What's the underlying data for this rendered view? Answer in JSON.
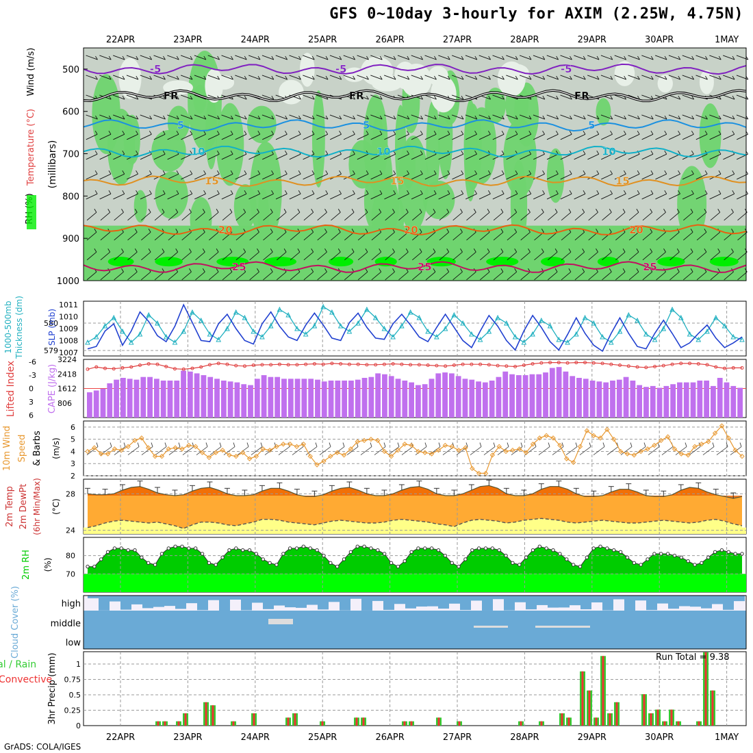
{
  "title": "GFS 0~10day 3-hourly for AXIM (2.25W, 4.75N)",
  "credit": "GrADS: COLA/IGES",
  "dates": [
    "22APR",
    "23APR",
    "24APR",
    "25APR",
    "26APR",
    "27APR",
    "28APR",
    "29APR",
    "30APR",
    "1MAY"
  ],
  "colors": {
    "rh_green": "#6fd46f",
    "rh_dark": "#00ee00",
    "rh_gray": "#c8d2c8",
    "cape": "#c070ee",
    "li": "#e04040",
    "slp": "#2040d0",
    "thick": "#20b0c0",
    "wind10": "#e89830",
    "temp_orange": "#ffaa33",
    "temp_dark": "#ee6600",
    "dew_yellow": "#ffff88",
    "rh2m": "#00cc00",
    "rh2m_bright": "#00ff00",
    "cloud": "#6aaad6",
    "cloud_bg": "#f4f0fa",
    "precip_total": "#33cc33",
    "precip_conv": "#ee3333"
  },
  "chart_data": [
    {
      "panel": "upper-air",
      "type": "heatmap",
      "ylabel": "(millibars)",
      "side_labels": [
        "RH (%)",
        "Temperature (°C)",
        "Wind (m/s)"
      ],
      "yticks": [
        500,
        600,
        700,
        800,
        900,
        1000
      ],
      "ylim": [
        1000,
        450
      ],
      "isotherms": [
        {
          "label": "-5",
          "level": 500
        },
        {
          "label": "FR",
          "level": 563
        },
        {
          "label": "5",
          "level": 633
        },
        {
          "label": "10",
          "level": 695
        },
        {
          "label": "15",
          "level": 765
        },
        {
          "label": "20",
          "level": 880
        },
        {
          "label": "25",
          "level": 968
        }
      ]
    },
    {
      "panel": "slp-thickness",
      "type": "line",
      "ylabel_left": "1000-500mb Thickness (dm)",
      "ylabel_right": "SLP (mb)",
      "left_ticks": [
        579,
        580
      ],
      "right_ticks": [
        1007,
        1008,
        1009,
        1010,
        1011
      ],
      "slp": [
        1007.3,
        1007.5,
        1008.8,
        1009.4,
        1007.6,
        1008.8,
        1010.4,
        1009.6,
        1008.4,
        1007.9,
        1009.2,
        1011.0,
        1009.5,
        1008.0,
        1007.9,
        1009.4,
        1010.2,
        1009.0,
        1008.0,
        1007.7,
        1009.4,
        1010.4,
        1009.2,
        1008.3,
        1008.0,
        1009.3,
        1010.3,
        1009.3,
        1008.2,
        1008.0,
        1009.5,
        1010.3,
        1009.1,
        1008.2,
        1008.1,
        1009.4,
        1010.2,
        1009.3,
        1008.3,
        1007.9,
        1009.1,
        1010.2,
        1009.1,
        1008.0,
        1007.4,
        1008.8,
        1010.1,
        1009.2,
        1008.0,
        1007.2,
        1008.8,
        1010.1,
        1009.1,
        1007.9,
        1007.2,
        1008.5,
        1009.9,
        1008.6,
        1007.6,
        1007.1,
        1008.6,
        1009.9,
        1008.6,
        1007.5,
        1007.3,
        1008.6,
        1009.7,
        1008.6,
        1007.4,
        1007.8,
        1008.6,
        1009.3,
        1008.2,
        1007.4,
        1007.8,
        1008.3
      ],
      "thickness": [
        579.3,
        579.5,
        579.9,
        580.2,
        579.7,
        579.3,
        579.6,
        580.3,
        580.0,
        579.5,
        579.3,
        579.7,
        580.4,
        580.1,
        579.6,
        579.4,
        579.8,
        580.4,
        580.2,
        579.7,
        579.5,
        579.9,
        580.5,
        580.3,
        579.8,
        579.6,
        579.9,
        580.6,
        580.4,
        579.9,
        579.7,
        580.0,
        580.5,
        580.2,
        579.8,
        579.5,
        579.9,
        580.4,
        580.2,
        579.7,
        579.5,
        579.8,
        580.3,
        580.0,
        579.6,
        579.4,
        579.7,
        580.2,
        580.0,
        579.5,
        579.3,
        579.6,
        580.1,
        579.9,
        579.4,
        579.3,
        579.6,
        580.2,
        580.0,
        579.5,
        579.3,
        579.7,
        580.3,
        580.1,
        579.6,
        579.4,
        579.8,
        580.5,
        580.2,
        579.6,
        579.4,
        579.7,
        580.2,
        579.9,
        579.5,
        579.4
      ]
    },
    {
      "panel": "li-cape",
      "type": "bar",
      "ylabel_left": "Lifted Index",
      "ylabel_right": "CAPE (J/kg)",
      "li_ticks": [
        -6,
        -3,
        0,
        3,
        6
      ],
      "cape_ticks": [
        806,
        1612,
        2418,
        3224
      ],
      "cape": [
        1400,
        1500,
        1600,
        1900,
        2100,
        2200,
        2150,
        2100,
        2250,
        2250,
        2150,
        2050,
        2050,
        2050,
        2600,
        2550,
        2450,
        2350,
        2250,
        2150,
        2050,
        2000,
        1950,
        1850,
        1800,
        2150,
        2350,
        2250,
        2250,
        2150,
        2150,
        2150,
        2150,
        2150,
        2100,
        2000,
        2050,
        2050,
        2050,
        2050,
        2100,
        2200,
        2250,
        2450,
        2400,
        2300,
        2150,
        2050,
        1950,
        1800,
        1850,
        2150,
        2450,
        2500,
        2450,
        2300,
        2150,
        2100,
        2000,
        1950,
        2050,
        2250,
        2550,
        2400,
        2350,
        2350,
        2400,
        2400,
        2500,
        2750,
        2800,
        2550,
        2300,
        2200,
        2150,
        2050,
        2000,
        1950,
        2050,
        2100,
        2250,
        2050,
        1800,
        1700,
        1750,
        1650,
        1750,
        1850,
        1950,
        1950,
        1950,
        2050,
        2050,
        1750,
        2200,
        1950,
        1750,
        1650
      ],
      "li": [
        -4.3,
        -4.8,
        -4.5,
        -4.4,
        -4.6,
        -4.8,
        -5.2,
        -5.5,
        -5.4,
        -4.9,
        -4.4,
        -4.3,
        -4.5,
        -4.8,
        -5.3,
        -5.6,
        -5.4,
        -5.1,
        -5.0,
        -5.2,
        -5.3,
        -5.3,
        -5.4,
        -5.3,
        -5.3,
        -5.4,
        -5.5,
        -5.4,
        -5.6,
        -5.5,
        -5.4,
        -5.4,
        -5.3,
        -5.3,
        -5.4,
        -5.5,
        -5.4,
        -5.3,
        -5.3,
        -5.2,
        -5.1,
        -5.0,
        -5.2,
        -5.4,
        -5.4,
        -5.4,
        -5.3,
        -5.1,
        -5.0,
        -4.9,
        -5.2,
        -5.5,
        -5.7,
        -5.8,
        -5.8,
        -5.7,
        -5.8,
        -5.8,
        -5.7,
        -5.6,
        -5.4,
        -5.2,
        -5.0,
        -4.8,
        -4.7,
        -4.9,
        -5.1,
        -5.4,
        -5.6,
        -5.6,
        -5.5,
        -5.3,
        -4.8,
        -4.5,
        -4.6,
        -4.6
      ]
    },
    {
      "panel": "wind-10m",
      "type": "line",
      "ylabel": "10m Wind Speed & Barbs (m/s)",
      "yticks": [
        2,
        3,
        4,
        5,
        6
      ],
      "ylim": [
        2,
        6.5
      ],
      "speed": [
        4.0,
        4.3,
        3.8,
        3.8,
        4.2,
        4.1,
        4.4,
        4.9,
        5.1,
        4.3,
        3.6,
        3.6,
        4.2,
        4.3,
        4.2,
        4.5,
        4.4,
        3.9,
        3.5,
        3.9,
        4.1,
        3.7,
        3.6,
        3.9,
        3.4,
        3.6,
        4.2,
        4.1,
        4.4,
        4.6,
        4.6,
        4.4,
        4.6,
        3.6,
        2.9,
        3.2,
        3.6,
        3.9,
        3.7,
        4.2,
        4.8,
        4.9,
        5.0,
        4.9,
        4.0,
        3.6,
        4.1,
        4.6,
        4.5,
        4.0,
        3.9,
        3.8,
        4.1,
        4.5,
        4.4,
        4.1,
        4.3,
        2.6,
        2.2,
        2.2,
        3.7,
        4.4,
        4.0,
        4.1,
        4.2,
        3.9,
        4.6,
        5.1,
        5.3,
        5.1,
        4.5,
        3.4,
        3.1,
        4.4,
        5.7,
        5.3,
        5.1,
        5.8,
        5.0,
        4.0,
        3.8,
        3.7,
        4.0,
        4.2,
        4.5,
        4.9,
        5.2,
        4.2,
        3.8,
        3.7,
        4.4,
        4.6,
        4.8,
        5.5,
        6.1,
        5.1,
        4.1,
        3.6
      ]
    },
    {
      "panel": "temp-2m",
      "type": "area",
      "ylabel": "2m Temp 2m DewPt (6hr Min/Max) (°C)",
      "yticks": [
        24,
        28
      ],
      "ylim": [
        23.6,
        29.6
      ],
      "temp": [
        28.0,
        27.9,
        27.9,
        28.0,
        28.4,
        28.7,
        28.8,
        28.5,
        28.1,
        27.9,
        27.8,
        27.9,
        28.3,
        28.6,
        28.7,
        28.4,
        28.0,
        27.8,
        27.8,
        27.9,
        28.3,
        28.6,
        28.6,
        28.3,
        27.9,
        27.7,
        27.7,
        27.9,
        28.3,
        28.6,
        28.7,
        28.4,
        28.0,
        27.8,
        27.8,
        28.0,
        28.4,
        28.7,
        28.8,
        28.5,
        28.0,
        27.8,
        27.8,
        28.0,
        28.4,
        28.8,
        28.9,
        28.6,
        28.0,
        27.8,
        27.8,
        28.0,
        28.5,
        28.8,
        28.8,
        28.5,
        28.0,
        27.7,
        27.7,
        27.8,
        28.2,
        28.5,
        28.5,
        28.2,
        27.8,
        27.7,
        27.7,
        27.9,
        28.4,
        28.7,
        28.6,
        28.2,
        27.9,
        27.7,
        27.5,
        27.7
      ],
      "dewpoint": [
        24.3,
        24.5,
        24.8,
        25.0,
        25.1,
        25.0,
        24.9,
        24.8,
        24.9,
        24.7,
        24.5,
        24.2,
        24.6,
        24.9,
        24.9,
        24.8,
        24.6,
        24.5,
        24.7,
        24.9,
        25.2,
        25.2,
        25.1,
        24.9,
        24.8,
        24.7,
        24.6,
        24.8,
        25.0,
        25.1,
        25.0,
        24.9,
        24.8,
        24.8,
        24.9,
        25.1,
        25.2,
        25.1,
        25.0,
        24.9,
        24.7,
        24.6,
        24.4,
        24.8,
        25.1,
        25.2,
        25.1,
        25.0,
        24.8,
        24.9,
        25.1,
        25.2,
        25.3,
        25.2,
        25.1,
        24.9,
        24.8,
        24.9,
        25.0,
        25.1,
        25.0,
        24.9,
        24.8,
        24.8,
        24.9,
        25.0,
        25.1,
        25.0,
        24.9,
        24.8,
        24.9,
        25.1,
        25.2,
        25.0,
        24.7,
        24.5
      ]
    },
    {
      "panel": "rh-2m",
      "type": "area",
      "ylabel": "2m RH (%)",
      "yticks": [
        70,
        80
      ],
      "ylim": [
        60,
        90
      ],
      "rh": [
        74,
        74,
        78,
        82,
        84,
        84,
        83,
        83,
        79,
        76,
        75,
        81,
        84,
        85,
        85,
        84,
        84,
        81,
        76,
        75,
        79,
        83,
        84,
        83,
        83,
        81,
        78,
        76,
        75,
        81,
        84,
        84,
        85,
        84,
        83,
        80,
        76,
        74,
        78,
        82,
        85,
        85,
        84,
        83,
        81,
        76,
        74,
        77,
        82,
        84,
        84,
        84,
        83,
        80,
        76,
        74,
        78,
        83,
        84,
        84,
        84,
        83,
        80,
        76,
        75,
        79,
        83,
        85,
        84,
        83,
        81,
        78,
        75,
        74,
        79,
        84,
        85,
        84,
        83,
        82,
        79,
        76,
        75,
        78,
        81,
        81,
        81,
        80,
        79,
        77,
        75,
        76,
        79,
        82,
        83,
        82,
        81,
        81
      ]
    },
    {
      "panel": "cloud-cover",
      "type": "area",
      "ylabel": "Cloud Cover (%)",
      "levels": [
        "high",
        "middle",
        "low"
      ]
    },
    {
      "panel": "precip",
      "type": "bar",
      "ylabel": "3hr Precip (mm)",
      "side_labels": [
        "Total / Rain",
        "Convective"
      ],
      "yticks": [
        0,
        0.25,
        0.5,
        0.75,
        1
      ],
      "ylim": [
        0,
        1.2
      ],
      "run_total_label": "Run Total = 9.38",
      "bars": [
        {
          "x": 10,
          "total": 0.07
        },
        {
          "x": 11,
          "total": 0.07
        },
        {
          "x": 13,
          "total": 0.07
        },
        {
          "x": 14,
          "total": 0.2
        },
        {
          "x": 17,
          "total": 0.38
        },
        {
          "x": 18,
          "total": 0.33
        },
        {
          "x": 21,
          "total": 0.07
        },
        {
          "x": 24,
          "total": 0.2
        },
        {
          "x": 29,
          "total": 0.13
        },
        {
          "x": 30,
          "total": 0.2
        },
        {
          "x": 34,
          "total": 0.07
        },
        {
          "x": 39,
          "total": 0.13
        },
        {
          "x": 40,
          "total": 0.13
        },
        {
          "x": 46,
          "total": 0.07
        },
        {
          "x": 47,
          "total": 0.07
        },
        {
          "x": 51,
          "total": 0.13
        },
        {
          "x": 54,
          "total": 0.07
        },
        {
          "x": 63,
          "total": 0.07
        },
        {
          "x": 66,
          "total": 0.07
        },
        {
          "x": 69,
          "total": 0.2
        },
        {
          "x": 70,
          "total": 0.13
        },
        {
          "x": 72,
          "total": 0.88
        },
        {
          "x": 73,
          "total": 0.57
        },
        {
          "x": 74,
          "total": 0.13
        },
        {
          "x": 75,
          "total": 1.13
        },
        {
          "x": 76,
          "total": 0.2
        },
        {
          "x": 77,
          "total": 0.38
        },
        {
          "x": 81,
          "total": 0.51
        },
        {
          "x": 82,
          "total": 0.2
        },
        {
          "x": 83,
          "total": 0.26
        },
        {
          "x": 84,
          "total": 0.07
        },
        {
          "x": 85,
          "total": 0.26
        },
        {
          "x": 86,
          "total": 0.07
        },
        {
          "x": 89,
          "total": 0.07
        },
        {
          "x": 90,
          "total": 1.19
        },
        {
          "x": 91,
          "total": 0.57
        }
      ]
    }
  ]
}
